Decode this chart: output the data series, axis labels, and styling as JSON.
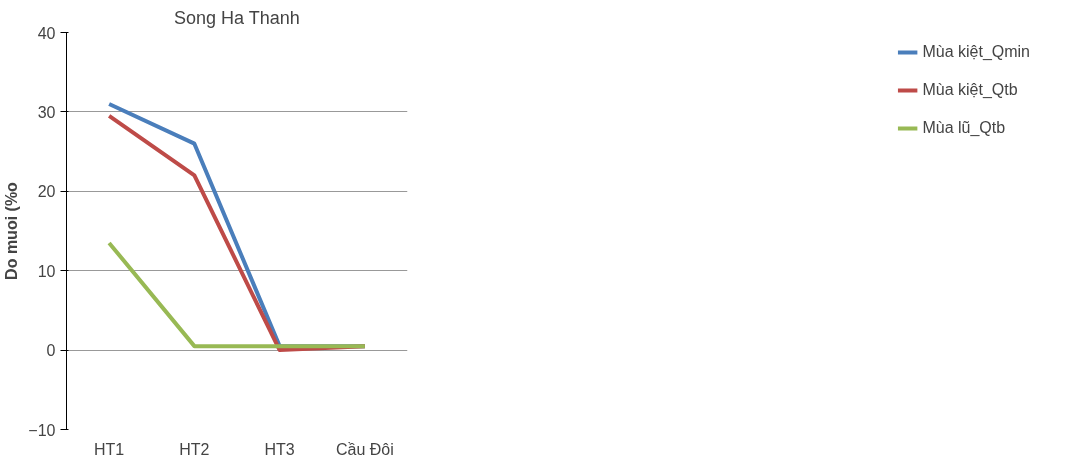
{
  "chart_data": {
    "type": "line",
    "title": "Song Ha Thanh",
    "ylabel": "Do muoi (%o",
    "categories": [
      "HT1",
      "HT2",
      "HT3",
      "Cầu Đôi"
    ],
    "series": [
      {
        "name": "Mùa kiệt_Qmin",
        "color": "#4a7ebb",
        "values": [
          31,
          26,
          0.5,
          0.5
        ]
      },
      {
        "name": "Mùa kiệt_Qtb",
        "color": "#be4b48",
        "values": [
          29.5,
          22,
          0,
          0.5
        ]
      },
      {
        "name": "Mùa lũ_Qtb",
        "color": "#98b954",
        "values": [
          13.5,
          0.5,
          0.5,
          0.5
        ]
      }
    ],
    "ylim": [
      -10,
      40
    ],
    "yticks": [
      -10,
      0,
      10,
      20,
      30,
      40
    ],
    "grid": "y",
    "legend": "right",
    "marker": "none",
    "line_style": "solid"
  }
}
